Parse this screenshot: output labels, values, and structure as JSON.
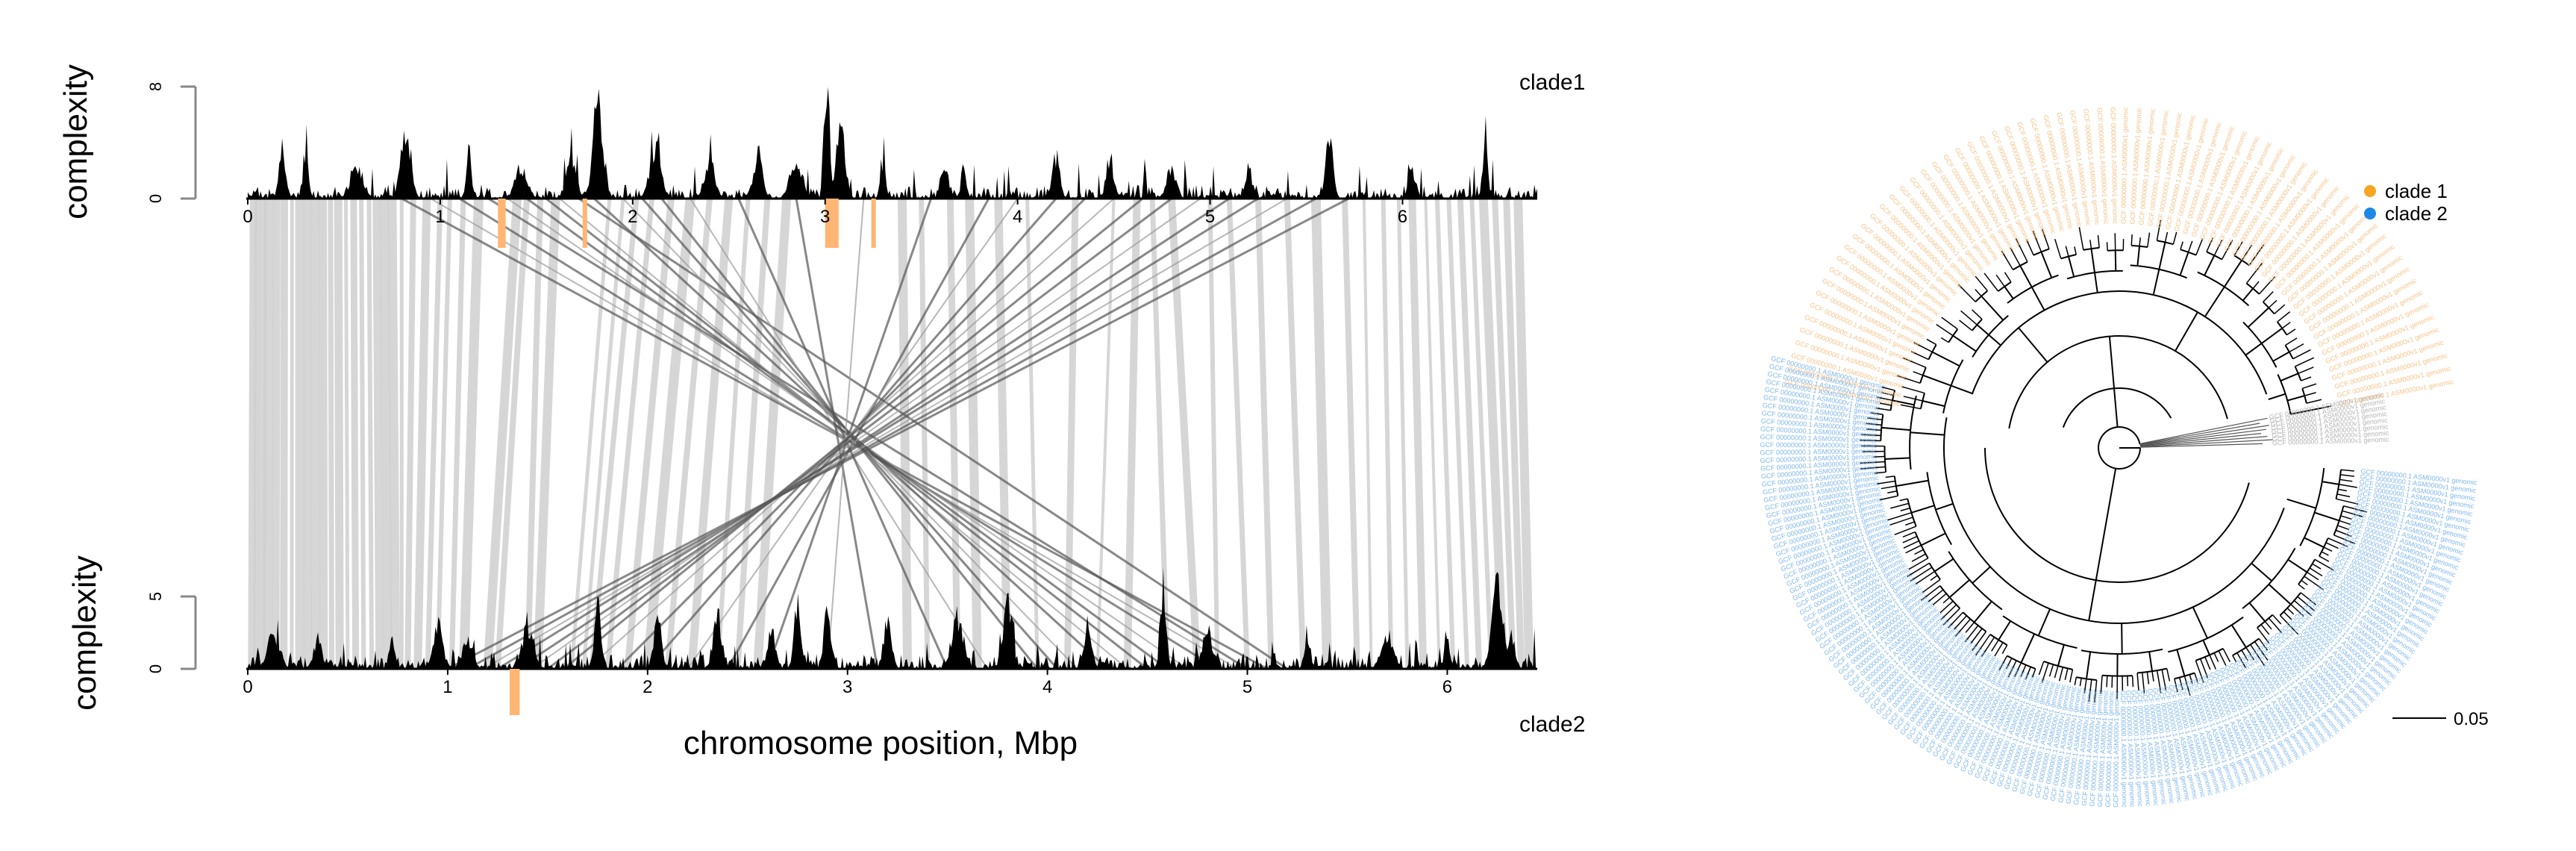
{
  "chart_data": [
    {
      "type": "area",
      "panel": "top",
      "label": "clade1",
      "ylabel": "complexity",
      "yticks": [
        "0",
        "8"
      ],
      "ylim": [
        0,
        10
      ],
      "xticks": [
        "0",
        "1",
        "2",
        "3",
        "4",
        "5",
        "6"
      ],
      "xlim": [
        0,
        6.7
      ],
      "fill_color": "#000000",
      "peaks": [
        {
          "x": 0.18,
          "y": 4.5
        },
        {
          "x": 0.3,
          "y": 4.0
        },
        {
          "x": 0.57,
          "y": 2.8
        },
        {
          "x": 0.82,
          "y": 5.2
        },
        {
          "x": 1.15,
          "y": 4.3
        },
        {
          "x": 1.42,
          "y": 2.8
        },
        {
          "x": 1.68,
          "y": 3.2
        },
        {
          "x": 1.82,
          "y": 8.5
        },
        {
          "x": 2.12,
          "y": 4.7
        },
        {
          "x": 2.4,
          "y": 3.2
        },
        {
          "x": 2.65,
          "y": 4.0
        },
        {
          "x": 2.85,
          "y": 3.5
        },
        {
          "x": 3.01,
          "y": 10.0
        },
        {
          "x": 3.08,
          "y": 6.0
        },
        {
          "x": 3.3,
          "y": 3.0
        },
        {
          "x": 3.62,
          "y": 3.5
        },
        {
          "x": 3.72,
          "y": 3.3
        },
        {
          "x": 4.2,
          "y": 3.5
        },
        {
          "x": 4.48,
          "y": 3.6
        },
        {
          "x": 4.8,
          "y": 2.8
        },
        {
          "x": 5.2,
          "y": 2.6
        },
        {
          "x": 5.62,
          "y": 5.0
        },
        {
          "x": 6.05,
          "y": 2.5
        },
        {
          "x": 6.43,
          "y": 6.2
        }
      ]
    },
    {
      "type": "area",
      "panel": "bottom",
      "label": "clade2",
      "ylabel": "complexity",
      "yticks": [
        "0",
        "5"
      ],
      "ylim": [
        0,
        6.5
      ],
      "xticks": [
        "0",
        "1",
        "2",
        "3",
        "4",
        "5",
        "6"
      ],
      "xlim": [
        0,
        6.45
      ],
      "xlabel": "chromosome position, Mbp",
      "fill_color": "#000000",
      "peaks": [
        {
          "x": 0.13,
          "y": 2.8
        },
        {
          "x": 0.35,
          "y": 2.2
        },
        {
          "x": 0.72,
          "y": 2.8
        },
        {
          "x": 0.95,
          "y": 3.5
        },
        {
          "x": 1.1,
          "y": 2.5
        },
        {
          "x": 1.4,
          "y": 3.3
        },
        {
          "x": 1.75,
          "y": 5.3
        },
        {
          "x": 2.05,
          "y": 4.2
        },
        {
          "x": 2.35,
          "y": 4.5
        },
        {
          "x": 2.62,
          "y": 3.2
        },
        {
          "x": 2.75,
          "y": 5.8
        },
        {
          "x": 2.9,
          "y": 4.5
        },
        {
          "x": 3.2,
          "y": 3.8
        },
        {
          "x": 3.55,
          "y": 4.2
        },
        {
          "x": 3.8,
          "y": 5.0
        },
        {
          "x": 4.2,
          "y": 3.5
        },
        {
          "x": 4.58,
          "y": 7.0
        },
        {
          "x": 4.8,
          "y": 3.2
        },
        {
          "x": 5.3,
          "y": 3.0
        },
        {
          "x": 5.7,
          "y": 2.8
        },
        {
          "x": 6.0,
          "y": 3.2
        },
        {
          "x": 6.25,
          "y": 7.5
        },
        {
          "x": 6.32,
          "y": 3.0
        }
      ]
    },
    {
      "type": "synteny",
      "description_of_links": "top-to-bottom alignment ribbons (Mbp)",
      "highlight_color": "#FFB574",
      "top_highlights": [
        {
          "start": 1.3,
          "end": 1.34
        },
        {
          "start": 1.74,
          "end": 1.76
        },
        {
          "start": 3.0,
          "end": 3.07
        },
        {
          "start": 3.24,
          "end": 3.26
        }
      ],
      "bottom_highlights": [
        {
          "start": 1.31,
          "end": 1.36
        }
      ],
      "parallel_links": [
        {
          "t": 0.03,
          "b": 0.02
        },
        {
          "t": 0.05,
          "b": 0.04
        },
        {
          "t": 0.08,
          "b": 0.07
        },
        {
          "t": 0.11,
          "b": 0.1
        },
        {
          "t": 0.15,
          "b": 0.14
        },
        {
          "t": 0.19,
          "b": 0.18
        },
        {
          "t": 0.23,
          "b": 0.22
        },
        {
          "t": 0.27,
          "b": 0.26
        },
        {
          "t": 0.31,
          "b": 0.3
        },
        {
          "t": 0.35,
          "b": 0.34
        },
        {
          "t": 0.39,
          "b": 0.38
        },
        {
          "t": 0.43,
          "b": 0.42
        },
        {
          "t": 0.47,
          "b": 0.46
        },
        {
          "t": 0.51,
          "b": 0.5
        },
        {
          "t": 0.55,
          "b": 0.54
        },
        {
          "t": 0.59,
          "b": 0.58
        },
        {
          "t": 0.63,
          "b": 0.62
        },
        {
          "t": 0.67,
          "b": 0.66
        },
        {
          "t": 0.71,
          "b": 0.7
        },
        {
          "t": 0.75,
          "b": 0.74
        },
        {
          "t": 0.8,
          "b": 0.77
        },
        {
          "t": 0.86,
          "b": 0.8
        },
        {
          "t": 0.93,
          "b": 0.85
        },
        {
          "t": 1.0,
          "b": 0.9
        },
        {
          "t": 1.05,
          "b": 0.95
        },
        {
          "t": 1.12,
          "b": 1.02
        },
        {
          "t": 1.2,
          "b": 1.08
        },
        {
          "t": 1.4,
          "b": 1.2
        },
        {
          "t": 1.45,
          "b": 1.25
        },
        {
          "t": 1.52,
          "b": 1.4
        },
        {
          "t": 1.6,
          "b": 1.45
        },
        {
          "t": 1.88,
          "b": 1.62
        },
        {
          "t": 1.95,
          "b": 1.68
        },
        {
          "t": 2.02,
          "b": 1.72
        },
        {
          "t": 2.1,
          "b": 1.8
        },
        {
          "t": 2.2,
          "b": 1.9
        },
        {
          "t": 2.3,
          "b": 2.0
        },
        {
          "t": 2.4,
          "b": 2.1
        },
        {
          "t": 2.5,
          "b": 2.22
        },
        {
          "t": 2.6,
          "b": 2.35
        },
        {
          "t": 2.7,
          "b": 2.45
        },
        {
          "t": 2.8,
          "b": 2.55
        },
        {
          "t": 3.4,
          "b": 3.3
        },
        {
          "t": 3.5,
          "b": 3.4
        },
        {
          "t": 3.65,
          "b": 3.55
        },
        {
          "t": 3.75,
          "b": 3.65
        },
        {
          "t": 3.9,
          "b": 3.8
        },
        {
          "t": 4.05,
          "b": 3.95
        },
        {
          "t": 4.3,
          "b": 4.1
        },
        {
          "t": 4.5,
          "b": 4.25
        },
        {
          "t": 4.62,
          "b": 4.4
        },
        {
          "t": 4.7,
          "b": 4.6
        },
        {
          "t": 4.8,
          "b": 4.75
        },
        {
          "t": 5.0,
          "b": 4.85
        },
        {
          "t": 5.1,
          "b": 5.0
        },
        {
          "t": 5.25,
          "b": 5.12
        },
        {
          "t": 5.4,
          "b": 5.28
        },
        {
          "t": 5.55,
          "b": 5.4
        },
        {
          "t": 5.7,
          "b": 5.55
        },
        {
          "t": 5.8,
          "b": 5.62
        },
        {
          "t": 5.9,
          "b": 5.72
        },
        {
          "t": 5.98,
          "b": 5.8
        },
        {
          "t": 6.05,
          "b": 5.88
        },
        {
          "t": 6.12,
          "b": 5.96
        },
        {
          "t": 6.18,
          "b": 6.03
        },
        {
          "t": 6.24,
          "b": 6.1
        },
        {
          "t": 6.3,
          "b": 6.16
        },
        {
          "t": 6.36,
          "b": 6.22
        },
        {
          "t": 6.42,
          "b": 6.28
        },
        {
          "t": 6.48,
          "b": 6.33
        },
        {
          "t": 6.54,
          "b": 6.37
        },
        {
          "t": 6.6,
          "b": 6.41
        }
      ],
      "inverted_links": [
        {
          "t": 0.8,
          "b": 5.1
        },
        {
          "t": 0.95,
          "b": 4.95
        },
        {
          "t": 1.1,
          "b": 4.85
        },
        {
          "t": 1.25,
          "b": 5.0
        },
        {
          "t": 1.35,
          "b": 4.7
        },
        {
          "t": 1.45,
          "b": 4.6
        },
        {
          "t": 1.55,
          "b": 4.5
        },
        {
          "t": 1.62,
          "b": 4.4
        },
        {
          "t": 1.72,
          "b": 5.2
        },
        {
          "t": 1.8,
          "b": 4.3
        },
        {
          "t": 1.95,
          "b": 4.15
        },
        {
          "t": 2.05,
          "b": 4.05
        },
        {
          "t": 2.15,
          "b": 3.95
        },
        {
          "t": 2.3,
          "b": 3.7
        },
        {
          "t": 2.55,
          "b": 3.5
        },
        {
          "t": 2.85,
          "b": 3.15
        },
        {
          "t": 3.2,
          "b": 2.9
        },
        {
          "t": 3.55,
          "b": 2.6
        },
        {
          "t": 3.85,
          "b": 2.4
        },
        {
          "t": 4.0,
          "b": 2.2
        },
        {
          "t": 4.2,
          "b": 2.0
        },
        {
          "t": 4.35,
          "b": 1.85
        },
        {
          "t": 4.5,
          "b": 1.7
        },
        {
          "t": 4.65,
          "b": 1.58
        },
        {
          "t": 4.8,
          "b": 1.5
        },
        {
          "t": 4.95,
          "b": 1.42
        },
        {
          "t": 5.1,
          "b": 1.35
        },
        {
          "t": 5.25,
          "b": 1.25
        },
        {
          "t": 5.4,
          "b": 1.18
        },
        {
          "t": 5.55,
          "b": 1.1
        },
        {
          "t": 5.72,
          "b": 1.0
        }
      ]
    },
    {
      "type": "tree",
      "layout": "circular phylogeny",
      "legend": [
        {
          "name": "clade 1",
          "color": "#F5A623"
        },
        {
          "name": "clade 2",
          "color": "#1E88E5"
        }
      ],
      "leaf_colors": {
        "clade1": "#F5C48A",
        "clade2": "#7FB6EC",
        "outgroup": "#B5B5B5"
      },
      "leaf_label_text": "GCF 00000000.1 ASM0000v1 genomic",
      "outgroup_label_text": "GCF 00000000.1 ASM0000v1 genomic",
      "counts": {
        "clade1": 70,
        "clade2": 150,
        "outgroup": 8
      },
      "scale_bar": {
        "label": "0.05",
        "value": 0.05
      }
    }
  ]
}
